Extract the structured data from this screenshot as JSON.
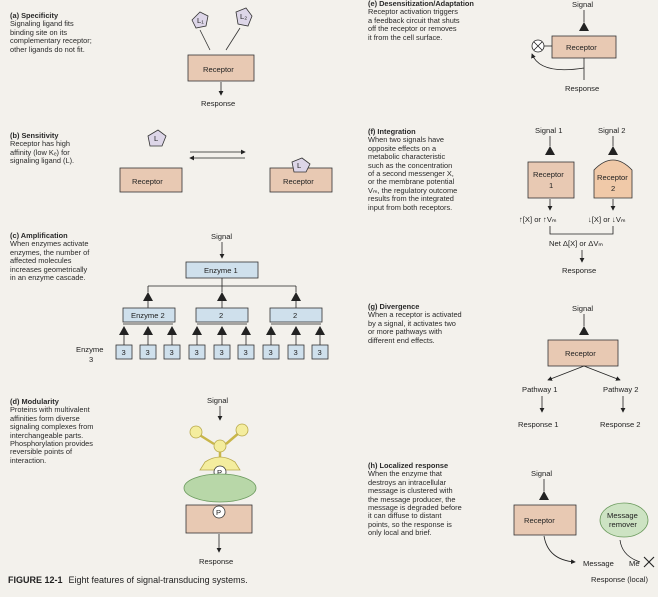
{
  "panels": {
    "a": {
      "heading": "(a) Specificity",
      "body": "Signaling ligand fits\nbinding site on its\ncomplementary receptor;\nother ligands do not fit."
    },
    "b": {
      "heading": "(b) Sensitivity",
      "body": "Receptor has high\naffinity (low Kₑ) for\nsignaling ligand (L)."
    },
    "c": {
      "heading": "(c) Amplification",
      "body": "When enzymes activate\nenzymes, the number of\naffected molecules\nincreases geometrically\nin an enzyme cascade."
    },
    "d": {
      "heading": "(d) Modularity",
      "body": "Proteins with multivalent\naffinities form diverse\nsignaling complexes from\ninterchangeable parts.\nPhosphorylation provides\nreversible points of\ninteraction."
    },
    "e": {
      "heading": "(e) Desensitization/Adaptation",
      "body": "Receptor activation triggers\na feedback circuit that shuts\noff the receptor or removes\nit from the cell surface."
    },
    "f": {
      "heading": "(f) Integration",
      "body": "When two signals have\nopposite effects on a\nmetabolic characteristic\nsuch as the concentration\nof a second messenger X,\nor the membrane potential\nVₘ, the regulatory outcome\nresults from the integrated\ninput from both receptors."
    },
    "g": {
      "heading": "(g) Divergence",
      "body": "When a receptor is activated\nby a signal, it activates two\nor more pathways with\ndifferent end effects."
    },
    "h": {
      "heading": "(h) Localized response",
      "body": "When the enzyme that\ndestroys an intracellular\nmessage is clustered with\nthe message producer, the\nmessage is degraded before\nit can diffuse to distant\npoints, so the response is\nonly local and brief."
    }
  },
  "labels": {
    "l1": "L₁",
    "l2": "L₂",
    "l": "L",
    "receptor": "Receptor",
    "response": "Response",
    "signal": "Signal",
    "enzyme1": "Enzyme 1",
    "enzyme2": "Enzyme 2",
    "two": "2",
    "three": "3",
    "enzyme3_a": "Enzyme",
    "enzyme3_b": "3",
    "p": "P",
    "signal1": "Signal 1",
    "signal2": "Signal 2",
    "receptor1_a": "Receptor",
    "receptor1_b": "1",
    "receptor2_a": "Receptor",
    "receptor2_b": "2",
    "f_out1": "↑[X] or ↑Vₘ",
    "f_out2": "↓[X] or ↓Vₘ",
    "net": "Net Δ[X] or ΔVₘ",
    "pathway1": "Pathway 1",
    "pathway2": "Pathway 2",
    "response1": "Response 1",
    "response2": "Response 2",
    "message_remover_a": "Message",
    "message_remover_b": "remover",
    "message": "Message",
    "message_x": "Me",
    "response_local": "Response (local)"
  },
  "caption": {
    "figure": "FIGURE 12-1",
    "text": "Eight features of signal-transducing systems."
  },
  "colors": {
    "receptor_fill": "#e8c9b3",
    "enzyme_fill": "#cfe0ec",
    "ligand_fill": "#ddd6e8",
    "receptor2_fill": "#f0c9a8",
    "triangle": "#222222"
  }
}
